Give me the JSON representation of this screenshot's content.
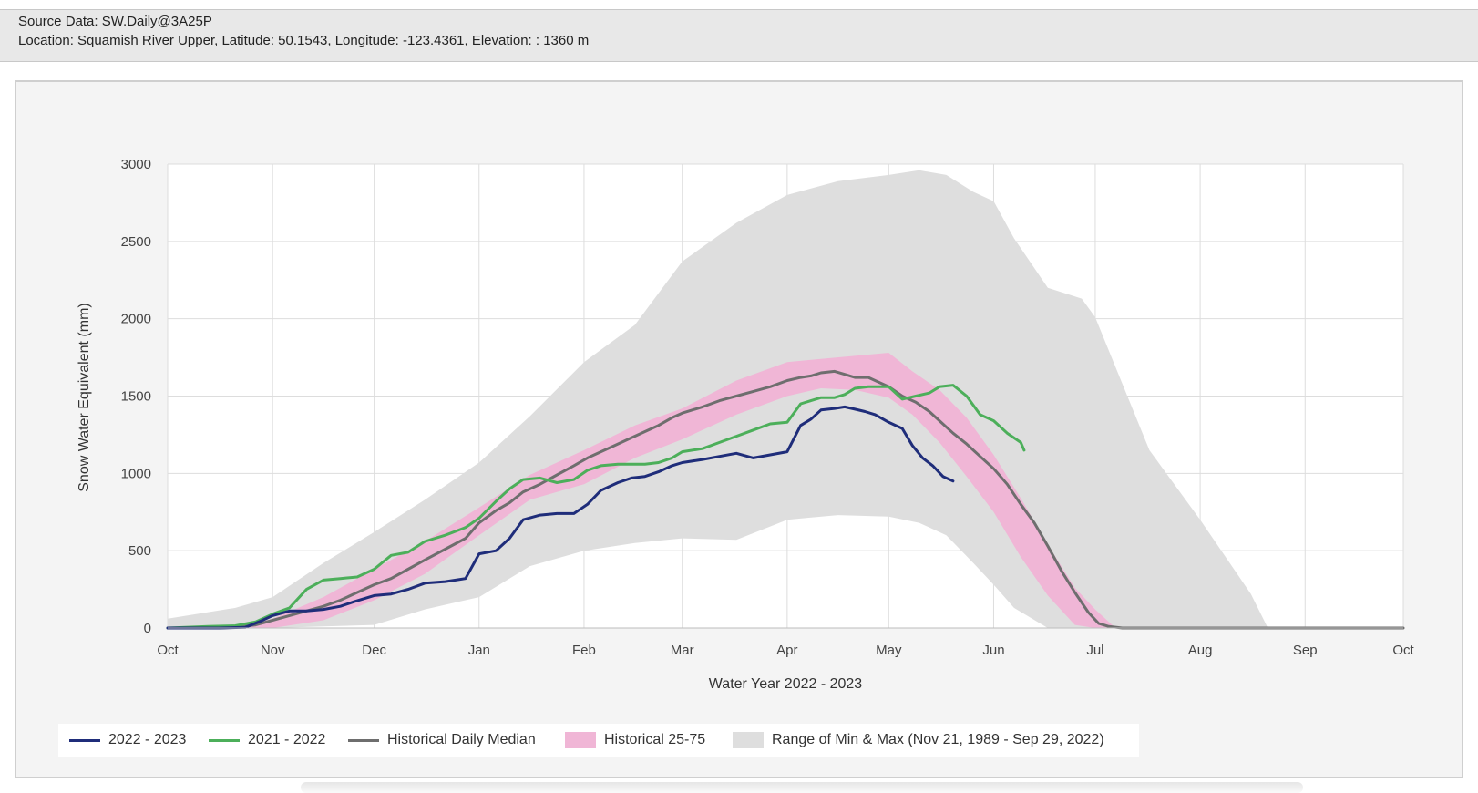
{
  "header": {
    "source": "Source Data: SW.Daily@3A25P",
    "location": "Location: Squamish River Upper, Latitude: 50.1543, Longitude: -123.4361, Elevation: : 1360 m"
  },
  "colors": {
    "s2223": "#1f2d7a",
    "s2122": "#4caf5a",
    "median": "#6e6e6e",
    "band": "#f0b6d6",
    "range": "#dedede",
    "grid": "#dddddd"
  },
  "chart_data": {
    "type": "area",
    "title": "",
    "xlabel": "Water Year 2022 - 2023",
    "ylabel": "Snow Water Equivalent (mm)",
    "ylim": [
      0,
      3000
    ],
    "yticks": [
      0,
      500,
      1000,
      1500,
      2000,
      2500,
      3000
    ],
    "xlim_days": [
      0,
      365
    ],
    "xtick_labels": [
      "Oct",
      "Nov",
      "Dec",
      "Jan",
      "Feb",
      "Mar",
      "Apr",
      "May",
      "Jun",
      "Jul",
      "Aug",
      "Sep",
      "Oct"
    ],
    "xtick_days": [
      0,
      31,
      61,
      92,
      123,
      152,
      183,
      213,
      244,
      274,
      305,
      336,
      365
    ],
    "range_min_max": {
      "label": "Range of Min & Max (Nov 21, 1989 - Sep 29, 2022)",
      "x_days": [
        0,
        20,
        31,
        46,
        61,
        76,
        92,
        107,
        123,
        138,
        152,
        168,
        183,
        198,
        213,
        222,
        230,
        238,
        244,
        250,
        260,
        270,
        274,
        290,
        305,
        320,
        325,
        336,
        350,
        365
      ],
      "min": [
        0,
        0,
        0,
        10,
        20,
        120,
        200,
        400,
        500,
        550,
        580,
        570,
        700,
        730,
        720,
        680,
        600,
        420,
        280,
        130,
        0,
        0,
        0,
        0,
        0,
        0,
        0,
        0,
        0,
        0
      ],
      "max": [
        60,
        130,
        200,
        420,
        620,
        830,
        1070,
        1370,
        1720,
        1960,
        2370,
        2620,
        2800,
        2890,
        2930,
        2960,
        2930,
        2820,
        2760,
        2520,
        2200,
        2130,
        2010,
        1150,
        700,
        220,
        0,
        0,
        0,
        0
      ]
    },
    "historical_25_75": {
      "label": "Historical 25-75",
      "x_days": [
        0,
        10,
        20,
        31,
        46,
        61,
        76,
        92,
        107,
        123,
        138,
        152,
        168,
        183,
        193,
        203,
        213,
        220,
        228,
        236,
        244,
        252,
        260,
        268,
        274,
        280,
        290,
        300,
        320,
        365
      ],
      "p25": [
        0,
        0,
        0,
        0,
        50,
        180,
        350,
        600,
        830,
        930,
        1100,
        1220,
        1380,
        1500,
        1550,
        1540,
        1490,
        1380,
        1200,
        980,
        750,
        460,
        210,
        20,
        0,
        0,
        0,
        0,
        0,
        0
      ],
      "p75": [
        0,
        0,
        0,
        60,
        200,
        380,
        560,
        780,
        990,
        1150,
        1310,
        1420,
        1600,
        1720,
        1740,
        1760,
        1780,
        1660,
        1540,
        1360,
        1120,
        840,
        540,
        260,
        120,
        0,
        0,
        0,
        0,
        0
      ]
    },
    "series": [
      {
        "name": "2022 - 2023",
        "x_days": [
          0,
          15,
          23,
          27,
          31,
          36,
          41,
          46,
          51,
          55,
          61,
          66,
          71,
          76,
          82,
          88,
          92,
          97,
          101,
          105,
          110,
          115,
          120,
          124,
          128,
          133,
          137,
          141,
          145,
          149,
          152,
          158,
          163,
          168,
          173,
          178,
          183,
          187,
          190,
          193,
          197,
          200,
          203,
          206,
          209,
          213,
          217,
          220,
          223,
          226,
          229,
          232
        ],
        "values": [
          0,
          0,
          5,
          40,
          80,
          110,
          110,
          120,
          140,
          170,
          210,
          220,
          250,
          290,
          300,
          320,
          480,
          500,
          580,
          700,
          730,
          740,
          740,
          800,
          890,
          940,
          970,
          980,
          1010,
          1050,
          1070,
          1090,
          1110,
          1130,
          1100,
          1120,
          1140,
          1310,
          1350,
          1410,
          1420,
          1430,
          1415,
          1400,
          1380,
          1330,
          1290,
          1180,
          1100,
          1050,
          980,
          950
        ]
      },
      {
        "name": "2021 - 2022",
        "x_days": [
          0,
          12,
          20,
          26,
          31,
          36,
          41,
          46,
          51,
          56,
          61,
          66,
          71,
          76,
          82,
          88,
          92,
          97,
          101,
          105,
          110,
          115,
          120,
          124,
          128,
          133,
          137,
          141,
          145,
          149,
          152,
          158,
          163,
          168,
          173,
          178,
          183,
          187,
          190,
          193,
          197,
          200,
          203,
          207,
          210,
          213,
          217,
          221,
          225,
          228,
          232,
          236,
          240,
          244,
          248,
          252,
          253
        ],
        "values": [
          0,
          10,
          15,
          40,
          90,
          130,
          250,
          310,
          320,
          330,
          380,
          470,
          490,
          560,
          600,
          650,
          710,
          820,
          900,
          960,
          970,
          940,
          960,
          1020,
          1050,
          1060,
          1060,
          1060,
          1070,
          1100,
          1140,
          1160,
          1200,
          1240,
          1280,
          1320,
          1330,
          1450,
          1470,
          1490,
          1490,
          1510,
          1550,
          1560,
          1560,
          1560,
          1480,
          1500,
          1520,
          1560,
          1570,
          1500,
          1380,
          1340,
          1260,
          1200,
          1150
        ]
      },
      {
        "name": "Historical Daily Median",
        "x_days": [
          0,
          15,
          20,
          26,
          31,
          36,
          41,
          46,
          51,
          56,
          61,
          66,
          71,
          76,
          82,
          88,
          92,
          97,
          101,
          105,
          110,
          115,
          120,
          124,
          128,
          133,
          137,
          141,
          145,
          149,
          152,
          158,
          163,
          168,
          173,
          178,
          183,
          187,
          190,
          193,
          197,
          200,
          203,
          207,
          210,
          213,
          217,
          221,
          225,
          228,
          232,
          236,
          240,
          244,
          248,
          252,
          256,
          260,
          264,
          268,
          272,
          275,
          278,
          282,
          290,
          300,
          320,
          345,
          365
        ],
        "values": [
          0,
          0,
          5,
          20,
          50,
          80,
          110,
          140,
          180,
          230,
          280,
          320,
          380,
          440,
          510,
          580,
          680,
          760,
          810,
          880,
          930,
          990,
          1050,
          1100,
          1140,
          1190,
          1230,
          1270,
          1310,
          1360,
          1390,
          1430,
          1470,
          1500,
          1530,
          1560,
          1600,
          1620,
          1630,
          1650,
          1660,
          1640,
          1620,
          1620,
          1590,
          1560,
          1500,
          1460,
          1400,
          1340,
          1260,
          1190,
          1110,
          1030,
          930,
          800,
          680,
          530,
          370,
          230,
          100,
          30,
          10,
          0,
          0,
          0,
          0,
          0,
          0
        ]
      }
    ],
    "legend": [
      "2022 - 2023",
      "2021 - 2022",
      "Historical Daily Median",
      "Historical 25-75",
      "Range of Min & Max (Nov 21, 1989 - Sep 29, 2022)"
    ]
  }
}
